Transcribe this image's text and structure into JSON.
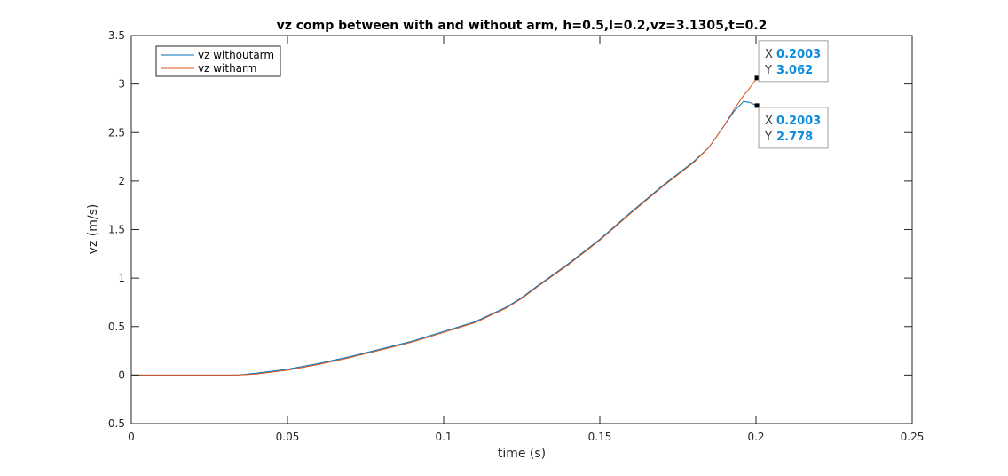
{
  "chart_data": {
    "type": "line",
    "title": "vz comp between with and without arm, h=0.5,l=0.2,vz=3.1305,t=0.2",
    "xlabel": "time (s)",
    "ylabel": "vz (m/s)",
    "xlim": [
      0,
      0.25
    ],
    "ylim": [
      -0.5,
      3.5
    ],
    "x_ticks": [
      "0",
      "0.05",
      "0.1",
      "0.15",
      "0.2",
      "0.25"
    ],
    "x_tick_values": [
      0,
      0.05,
      0.1,
      0.15,
      0.2,
      0.25
    ],
    "y_ticks": [
      "-0.5",
      "0",
      "0.5",
      "1",
      "1.5",
      "2",
      "2.5",
      "3",
      "3.5"
    ],
    "y_tick_values": [
      -0.5,
      0,
      0.5,
      1,
      1.5,
      2,
      2.5,
      3,
      3.5
    ],
    "grid": false,
    "legend_position": "top-left",
    "series": [
      {
        "name": "vz withoutarm",
        "color": "#0072bd",
        "x": [
          0,
          0.01,
          0.02,
          0.03,
          0.034,
          0.04,
          0.05,
          0.06,
          0.07,
          0.08,
          0.09,
          0.1,
          0.11,
          0.12,
          0.125,
          0.13,
          0.14,
          0.15,
          0.16,
          0.17,
          0.18,
          0.185,
          0.19,
          0.193,
          0.196,
          0.198,
          0.2003
        ],
        "y": [
          0,
          0,
          0,
          0,
          0,
          0.02,
          0.06,
          0.12,
          0.19,
          0.27,
          0.35,
          0.45,
          0.55,
          0.7,
          0.8,
          0.92,
          1.15,
          1.4,
          1.68,
          1.95,
          2.2,
          2.35,
          2.58,
          2.72,
          2.82,
          2.81,
          2.778
        ]
      },
      {
        "name": "vz witharm",
        "color": "#d95319",
        "x": [
          0,
          0.01,
          0.02,
          0.03,
          0.034,
          0.04,
          0.05,
          0.06,
          0.07,
          0.08,
          0.09,
          0.1,
          0.11,
          0.12,
          0.125,
          0.13,
          0.14,
          0.15,
          0.16,
          0.17,
          0.18,
          0.185,
          0.19,
          0.193,
          0.196,
          0.198,
          0.2003
        ],
        "y": [
          0,
          0,
          0,
          0,
          0,
          0.01,
          0.05,
          0.11,
          0.18,
          0.26,
          0.34,
          0.44,
          0.54,
          0.69,
          0.79,
          0.91,
          1.14,
          1.39,
          1.67,
          1.94,
          2.19,
          2.35,
          2.58,
          2.74,
          2.88,
          2.96,
          3.062
        ]
      }
    ],
    "datatips": [
      {
        "x_key": "X",
        "x_value": "0.2003",
        "y_key": "Y",
        "y_value": "3.062",
        "x": 0.2003,
        "y": 3.062
      },
      {
        "x_key": "X",
        "x_value": "0.2003",
        "y_key": "Y",
        "y_value": "2.778",
        "x": 0.2003,
        "y": 2.778
      }
    ]
  }
}
